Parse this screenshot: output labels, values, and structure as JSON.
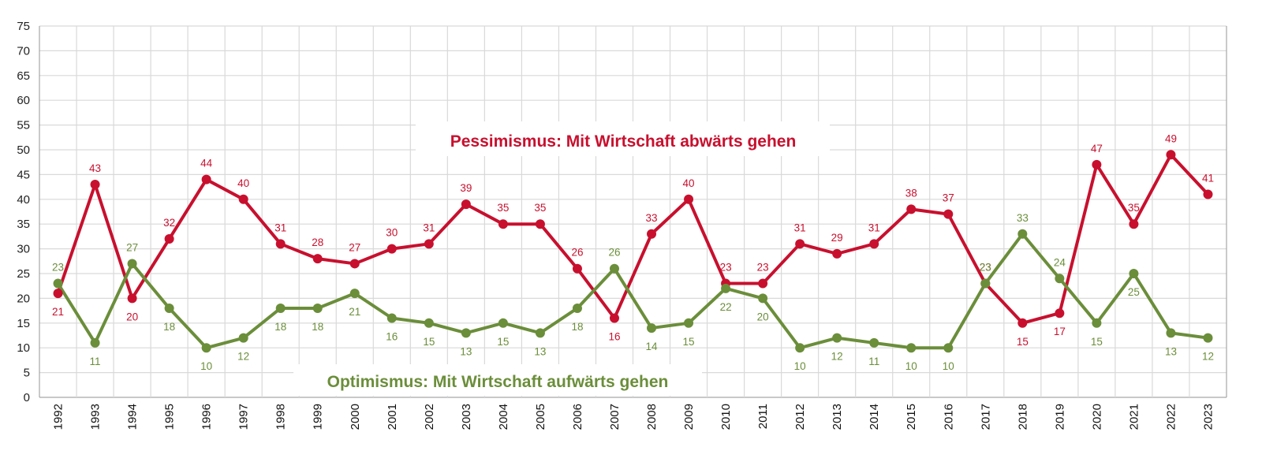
{
  "chart_data": {
    "type": "line",
    "categories": [
      "1992",
      "1993",
      "1994",
      "1995",
      "1996",
      "1997",
      "1998",
      "1999",
      "2000",
      "2001",
      "2002",
      "2003",
      "2004",
      "2005",
      "2006",
      "2007",
      "2008",
      "2009",
      "2010",
      "2011",
      "2012",
      "2013",
      "2014",
      "2015",
      "2016",
      "2017",
      "2018",
      "2019",
      "2020",
      "2021",
      "2022",
      "2023"
    ],
    "ylim": [
      0,
      75
    ],
    "yticks": [
      0,
      5,
      10,
      15,
      20,
      25,
      30,
      35,
      40,
      45,
      50,
      55,
      60,
      65,
      70,
      75
    ],
    "grid": true,
    "series": [
      {
        "name": "Pessimismus: Mit Wirtschaft abwärts gehen",
        "color": "#c8102e",
        "values": [
          21,
          43,
          20,
          32,
          44,
          40,
          31,
          28,
          27,
          30,
          31,
          39,
          35,
          35,
          26,
          16,
          33,
          40,
          23,
          23,
          31,
          29,
          31,
          38,
          37,
          23,
          15,
          17,
          47,
          35,
          49,
          41
        ]
      },
      {
        "name": "Optimismus: Mit Wirtschaft aufwärts gehen",
        "color": "#6b8e3a",
        "values": [
          23,
          11,
          27,
          18,
          10,
          12,
          18,
          18,
          21,
          16,
          15,
          13,
          15,
          13,
          18,
          26,
          14,
          15,
          22,
          20,
          10,
          12,
          11,
          10,
          10,
          23,
          33,
          24,
          15,
          25,
          13,
          12
        ]
      }
    ]
  }
}
